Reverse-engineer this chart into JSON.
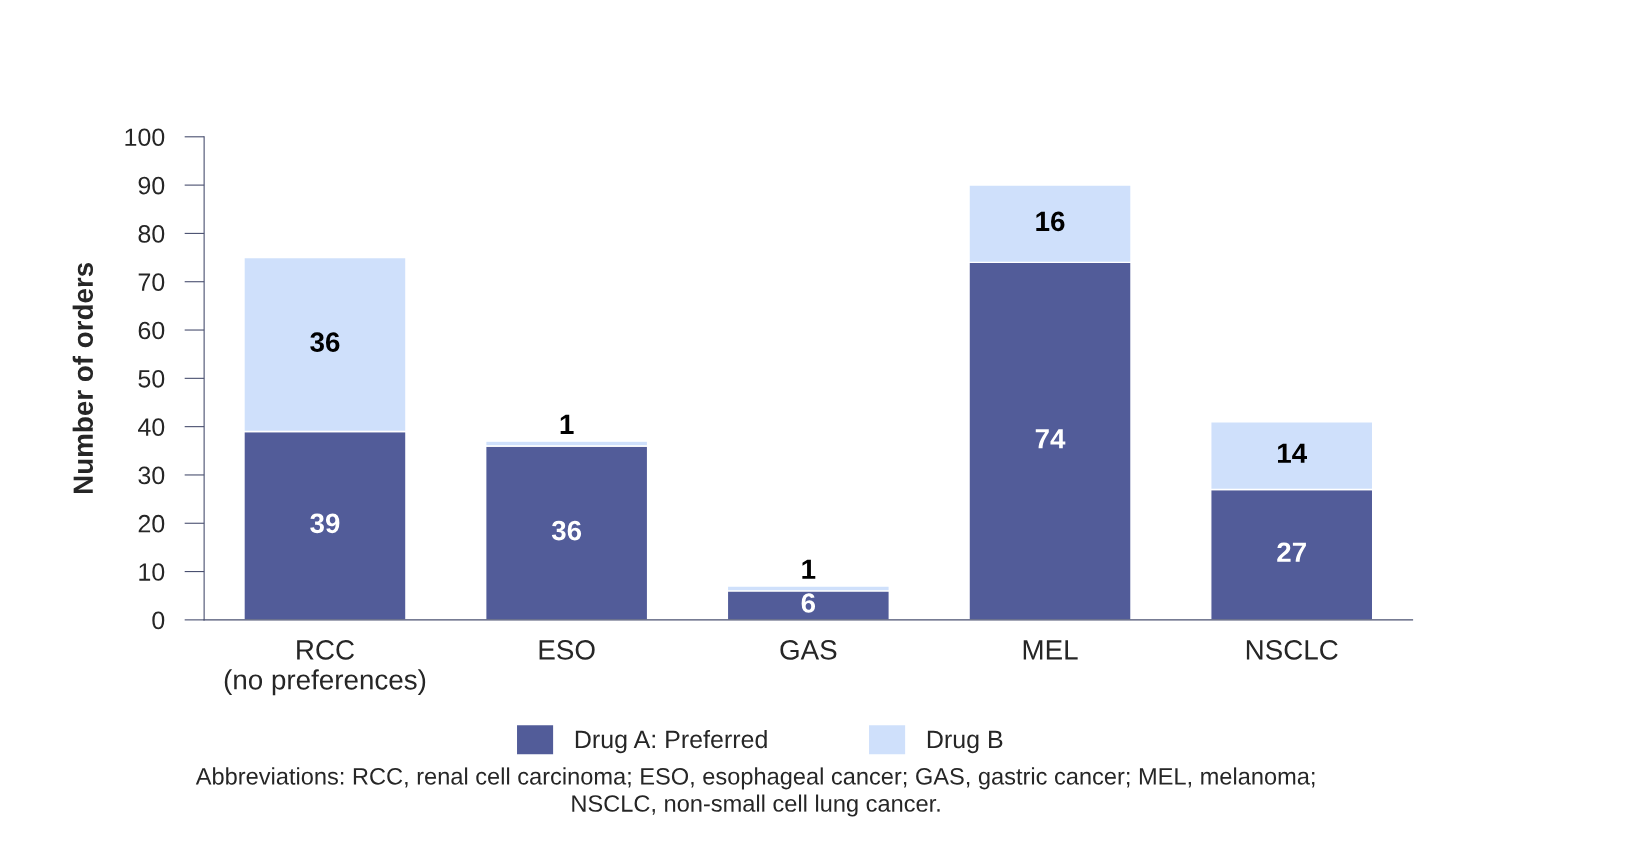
{
  "chart_data": {
    "type": "bar",
    "stacked": true,
    "ylabel": "Number of orders",
    "categories": [
      "RCC\n(no preferences)",
      "ESO",
      "GAS",
      "MEL",
      "NSCLC"
    ],
    "series": [
      {
        "name": "Drug A: Preferred",
        "color": "#525c99",
        "values": [
          39,
          36,
          6,
          74,
          27
        ]
      },
      {
        "name": "Drug B",
        "color": "#cfe0fb",
        "values": [
          36,
          1,
          1,
          16,
          14
        ]
      }
    ],
    "ylim": [
      0,
      100
    ],
    "yticks": [
      0,
      10,
      20,
      30,
      40,
      50,
      60,
      70,
      80,
      90,
      100
    ],
    "data_labels": true,
    "grid": false,
    "legend": "bottom",
    "annotations": [
      "Abbreviations: RCC, renal cell carcinoma; ESO, esophageal cancer; GAS, gastric cancer; MEL, melanoma;\nNSCLC, non-small cell lung cancer."
    ]
  }
}
